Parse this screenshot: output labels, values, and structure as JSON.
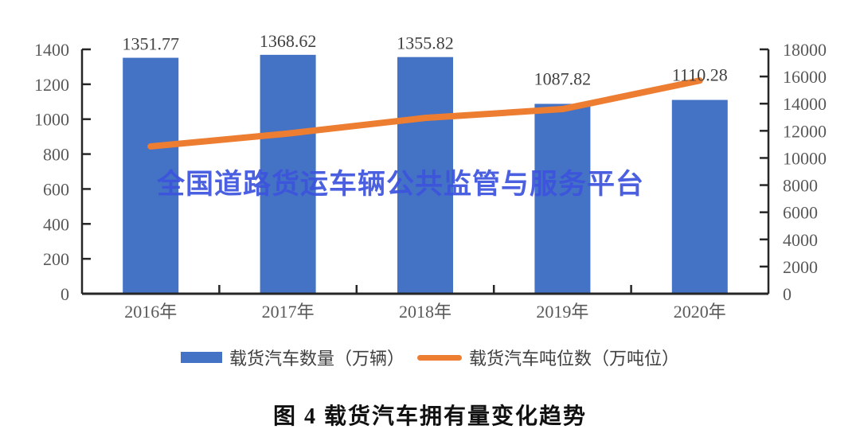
{
  "watermark": {
    "text": "全国道路货运车辆公共监管与服务平台",
    "color": "#3C53DE"
  },
  "caption": "图 4  载货汽车拥有量变化趋势",
  "legend": {
    "items": [
      {
        "label": "载货汽车数量（万辆）",
        "marker": "bar",
        "color": "#4472C4"
      },
      {
        "label": "载货汽车吨位数（万吨位）",
        "marker": "line",
        "color": "#ED7D31"
      }
    ]
  },
  "colors": {
    "bar": "#4472C4",
    "line": "#ED7D31",
    "axis": "#262626",
    "tick_label": "#595959",
    "data_label": "#404040",
    "watermark": "#3C53DE"
  },
  "chart_data": {
    "type": "bar",
    "subtype": "bar+line combo, dual y-axes",
    "title": "图 4  载货汽车拥有量变化趋势",
    "categories": [
      "2016年",
      "2017年",
      "2018年",
      "2019年",
      "2020年"
    ],
    "series": [
      {
        "name": "载货汽车数量（万辆）",
        "type": "bar",
        "axis": "left",
        "values": [
          1351.77,
          1368.62,
          1355.82,
          1087.82,
          1110.28
        ],
        "data_labels": [
          "1351.77",
          "1368.62",
          "1355.82",
          "1087.82",
          "1110.28"
        ]
      },
      {
        "name": "载货汽车吨位数（万吨位）",
        "type": "line",
        "axis": "right",
        "values": [
          10850,
          11800,
          12950,
          13600,
          15700
        ],
        "values_estimated_from_pixels": true
      }
    ],
    "y_left": {
      "min": 0,
      "max": 1400,
      "step": 200,
      "ticks": [
        0,
        200,
        400,
        600,
        800,
        1000,
        1200,
        1400
      ]
    },
    "y_right": {
      "min": 0,
      "max": 18000,
      "step": 2000,
      "ticks": [
        0,
        2000,
        4000,
        6000,
        8000,
        10000,
        12000,
        14000,
        16000,
        18000
      ]
    },
    "grid": false,
    "legend_position": "bottom",
    "xlabel": "",
    "ylabel_left": "",
    "ylabel_right": ""
  }
}
